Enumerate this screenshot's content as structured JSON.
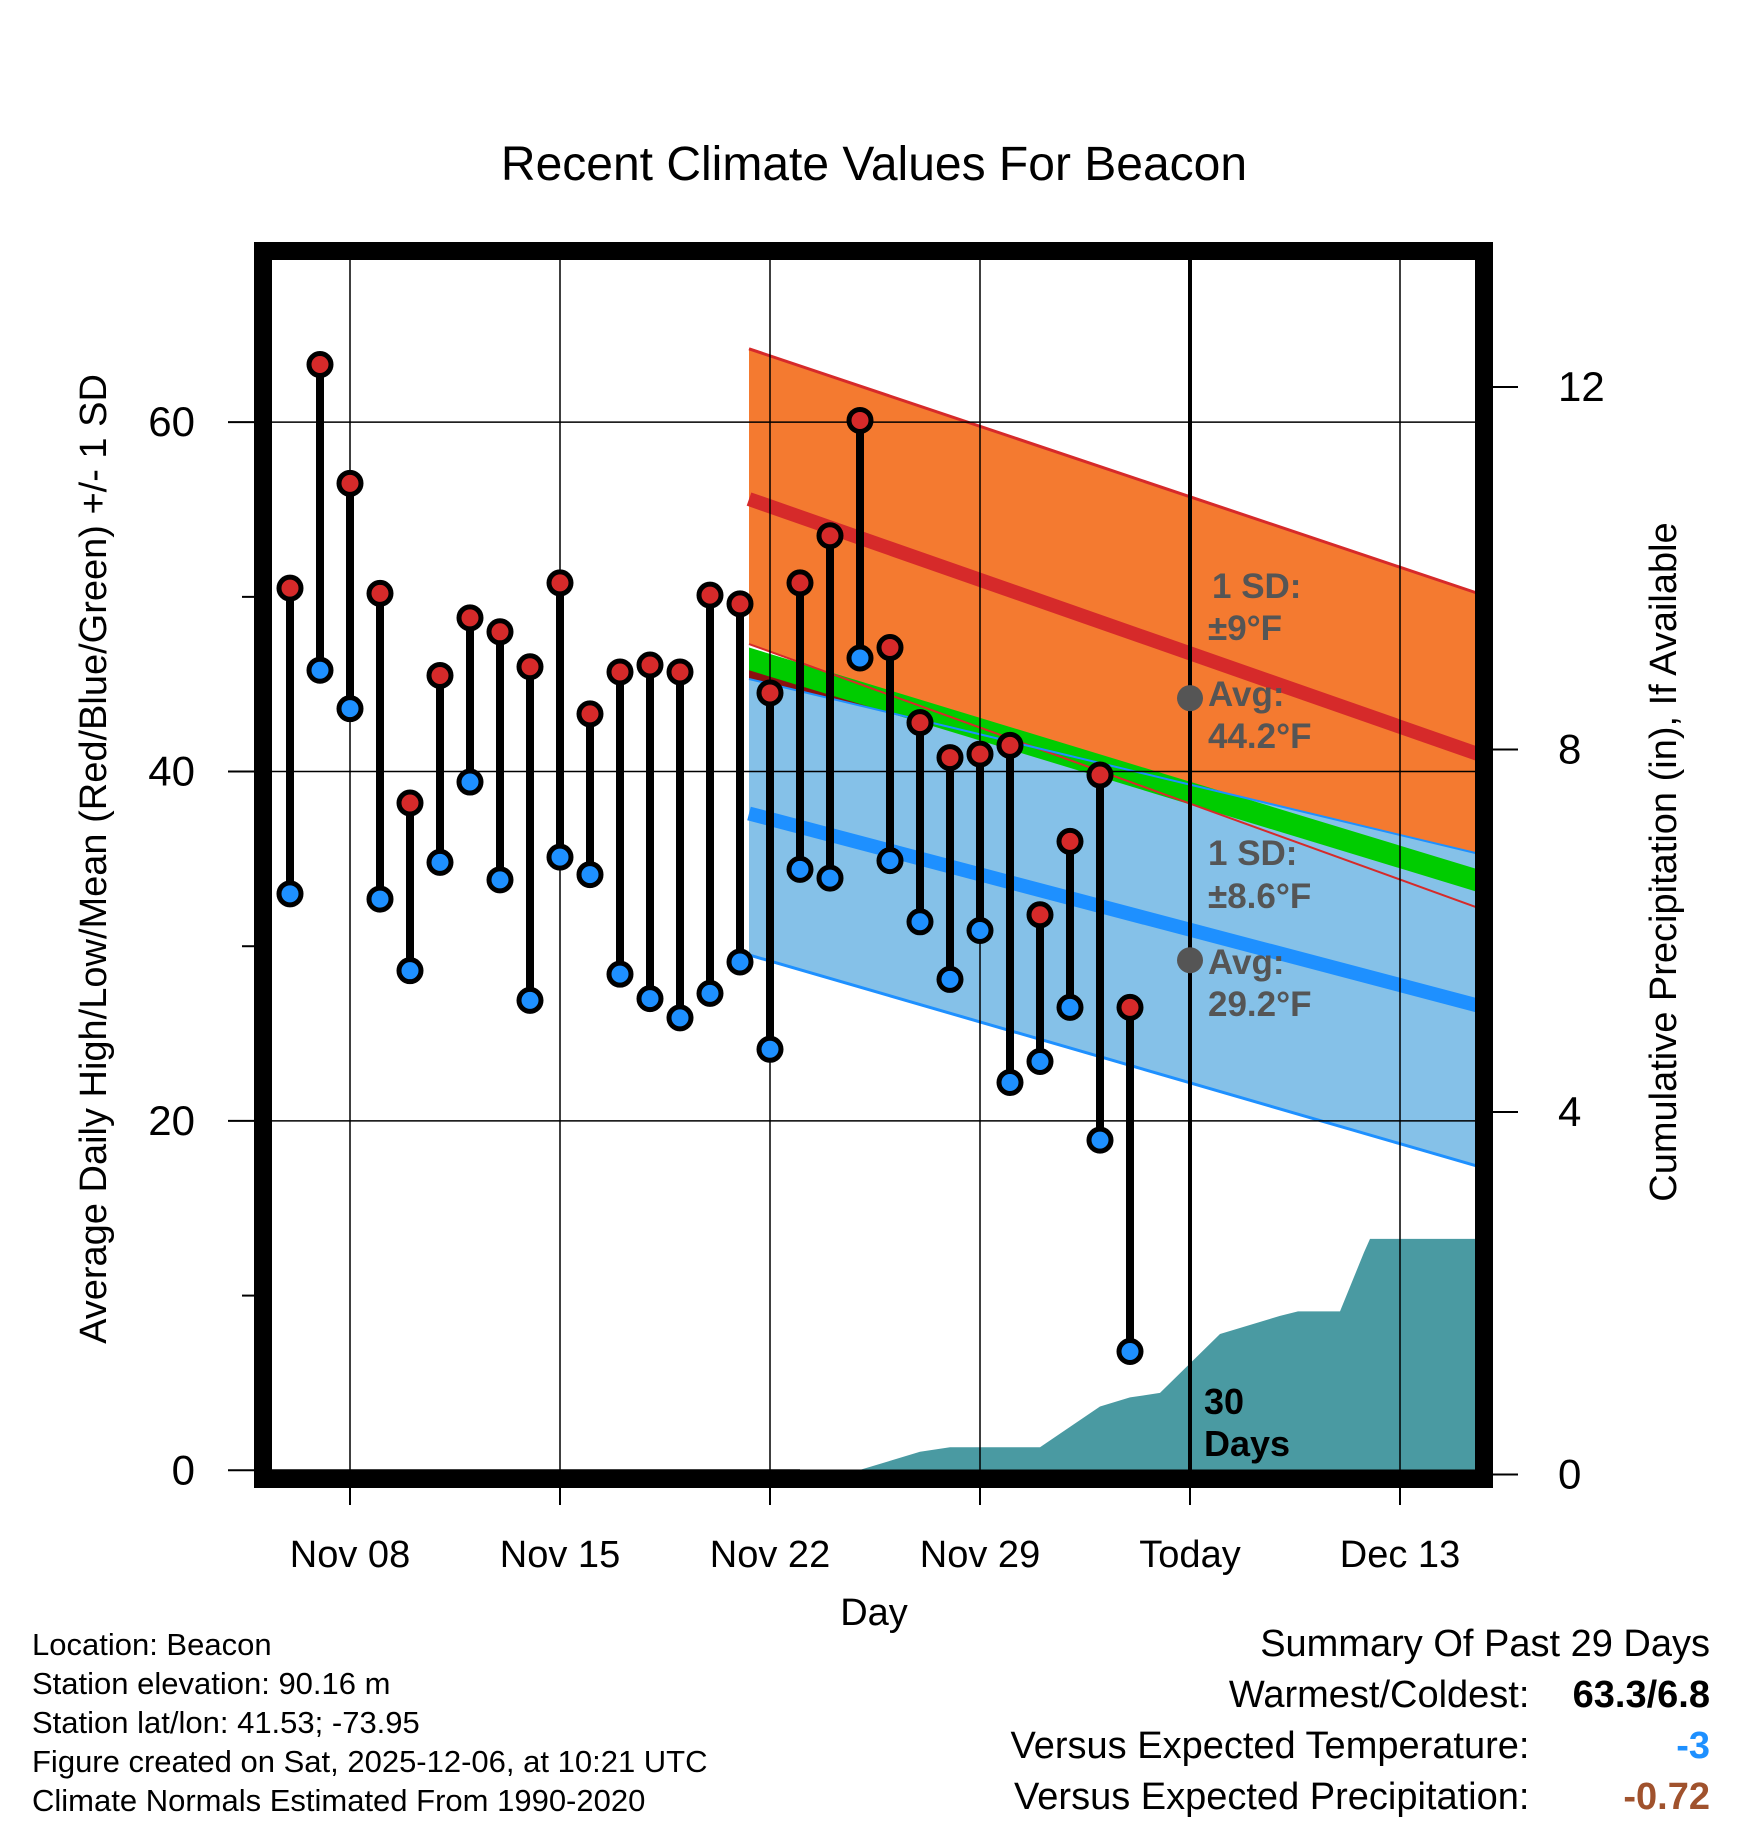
{
  "chart_data": {
    "type": "line",
    "title": "Recent Climate Values For Beacon",
    "xlabel": "Day",
    "ylabel": "Average Daily High/Low/Mean (Red/Blue/Green) +/- 1 SD",
    "y2label": "Cumulative Precipitation (in), If Available",
    "x_ticks": [
      "Nov 08",
      "Nov 15",
      "Nov 22",
      "Nov 29",
      "Today",
      "Dec 13"
    ],
    "y_ticks": [
      "0",
      "20",
      "40",
      "60"
    ],
    "y2_ticks": [
      "0",
      "4",
      "8",
      "12"
    ],
    "ylim": [
      -0.5,
      69.8
    ],
    "y2lim": [
      -0.05,
      13.5
    ],
    "x_range_days": [
      -14.7,
      9.6
    ],
    "today_label": "30 Days",
    "normals": {
      "high_avg_start": 55.6,
      "high_avg_end": 41.0,
      "high_sd_upper_start": 64.2,
      "high_sd_upper_end": 50.2,
      "high_sd_lower_start": 47.3,
      "high_sd_lower_end": 32.2,
      "low_avg_start": 37.6,
      "low_avg_end": 26.6,
      "low_sd_upper_start": 45.3,
      "low_sd_upper_end": 35.3,
      "low_sd_lower_start": 29.5,
      "low_sd_lower_end": 17.4,
      "mean_start": 46.5,
      "mean_end": 33.8
    },
    "annotations": {
      "high_sd_label": "1 SD:",
      "high_sd_value": "±9°F",
      "high_avg_label": "Avg:",
      "high_avg_value": "44.2°F",
      "high_avg_today": 44.2,
      "low_sd_label": "1 SD:",
      "low_sd_value": "±8.6°F",
      "low_avg_label": "Avg:",
      "low_avg_value": "29.2°F",
      "low_avg_today": 29.2
    },
    "series": [
      {
        "name": "Daily High",
        "day_offsets": [
          -30,
          -29,
          -28,
          -27,
          -26,
          -25,
          -24,
          -23,
          -22,
          -21,
          -20,
          -19,
          -18,
          -17,
          -16,
          -15,
          -14,
          -13,
          -12,
          -11,
          -10,
          -9,
          -8,
          -7,
          -6,
          -5,
          -4,
          -3,
          -2,
          -1
        ],
        "values": [
          50.5,
          63.3,
          56.5,
          50.2,
          38.2,
          45.5,
          48.8,
          48.0,
          46.0,
          50.8,
          43.3,
          45.7,
          46.1,
          45.7,
          50.1,
          49.6,
          44.5,
          50.8,
          53.5,
          60.1,
          47.1,
          42.8,
          40.8,
          41.0,
          41.5,
          31.8,
          36.0,
          39.8,
          26.5,
          null
        ]
      },
      {
        "name": "Daily Low",
        "day_offsets": [
          -30,
          -29,
          -28,
          -27,
          -26,
          -25,
          -24,
          -23,
          -22,
          -21,
          -20,
          -19,
          -18,
          -17,
          -16,
          -15,
          -14,
          -13,
          -12,
          -11,
          -10,
          -9,
          -8,
          -7,
          -6,
          -5,
          -4,
          -3,
          -2,
          -1
        ],
        "values": [
          33.0,
          45.8,
          43.6,
          32.7,
          28.6,
          34.8,
          39.4,
          33.8,
          26.9,
          35.1,
          34.1,
          28.4,
          27.0,
          25.9,
          27.3,
          29.1,
          24.1,
          34.4,
          33.9,
          46.5,
          34.9,
          31.4,
          28.1,
          30.9,
          22.2,
          23.4,
          26.5,
          18.9,
          6.8,
          null
        ]
      },
      {
        "name": "Cumulative Precipitation",
        "x_days": [
          -14.7,
          -13.0,
          -12.0,
          -11.0,
          -9.0,
          -8.0,
          -6.0,
          -5.0,
          -3.0,
          -2.0,
          -1.0,
          1.0,
          3.0,
          3.6,
          5.0,
          5.8,
          6.0,
          8.0,
          9.6
        ],
        "values": [
          0,
          0,
          0.05,
          0.05,
          0.25,
          0.3,
          0.3,
          0.3,
          0.75,
          0.85,
          0.9,
          1.55,
          1.75,
          1.8,
          1.8,
          2.45,
          2.6,
          2.6,
          2.6
        ]
      }
    ]
  },
  "info": {
    "location": "Location: Beacon",
    "elevation": "Station elevation: 90.16 m",
    "latlon": "Station lat/lon: 41.53; -73.95",
    "created": "Figure created on Sat, 2025-12-06, at 10:21 UTC",
    "normals": "Climate Normals Estimated From 1990-2020"
  },
  "summary": {
    "title": "Summary Of Past 29 Days",
    "warm_cold_label": "Warmest/Coldest:",
    "warm_cold_value": "63.3/6.8",
    "temp_label": "Versus Expected Temperature:",
    "temp_value": "-3",
    "temp_color": "#1e90ff",
    "precip_label": "Versus Expected Precipitation:",
    "precip_value": "-0.72",
    "precip_color": "#a0522d"
  },
  "colors": {
    "high_band": "#f47a30",
    "high_line": "#d62a2a",
    "low_band": "#85c1e8",
    "low_line": "#1e90ff",
    "mean_band": "#00cc00",
    "mean_dark": "#8b1010",
    "precip": "#4a9aa2",
    "annot": "#555555"
  }
}
